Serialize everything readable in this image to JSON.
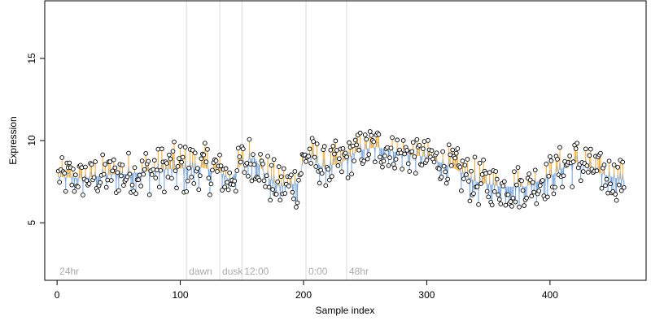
{
  "chart_data": {
    "type": "scatter",
    "title": "",
    "xlabel": "Sample index",
    "ylabel": "Expression",
    "xlim": [
      -10,
      478
    ],
    "ylim": [
      1.5,
      18.5
    ],
    "x_ticks": [
      0,
      100,
      200,
      300,
      400
    ],
    "y_ticks": [
      5,
      10,
      15
    ],
    "grid": false,
    "colors": {
      "above_trend": "#f5a623",
      "below_trend": "#6f9fd8",
      "point_fill": "#ffffff",
      "point_stroke": "#000000",
      "marker_line": "#d9d9d9",
      "annotation": "#aaaaaa"
    },
    "annotations": [
      {
        "x": 0,
        "label": "24hr"
      },
      {
        "x": 105,
        "label": "dawn"
      },
      {
        "x": 132,
        "label": "dusk"
      },
      {
        "x": 150,
        "label": "12:00"
      },
      {
        "x": 202,
        "label": "0:00"
      },
      {
        "x": 235,
        "label": "48hr"
      }
    ],
    "marker_lines": [
      105,
      132,
      150,
      202,
      235
    ],
    "trend": [
      [
        0,
        7.8
      ],
      [
        20,
        7.7
      ],
      [
        40,
        7.9
      ],
      [
        60,
        8.0
      ],
      [
        80,
        8.2
      ],
      [
        100,
        8.3
      ],
      [
        115,
        8.4
      ],
      [
        132,
        8.1
      ],
      [
        140,
        7.6
      ],
      [
        150,
        8.6
      ],
      [
        160,
        9.0
      ],
      [
        170,
        7.8
      ],
      [
        180,
        7.2
      ],
      [
        195,
        7.4
      ],
      [
        202,
        9.3
      ],
      [
        215,
        8.4
      ],
      [
        230,
        8.6
      ],
      [
        245,
        9.4
      ],
      [
        260,
        9.6
      ],
      [
        280,
        9.2
      ],
      [
        300,
        9.0
      ],
      [
        320,
        8.4
      ],
      [
        340,
        7.5
      ],
      [
        360,
        7.2
      ],
      [
        380,
        7.2
      ],
      [
        400,
        7.8
      ],
      [
        415,
        8.6
      ],
      [
        425,
        8.7
      ],
      [
        440,
        8.0
      ],
      [
        460,
        7.6
      ]
    ],
    "amplitude": [
      [
        0,
        0.8
      ],
      [
        60,
        0.9
      ],
      [
        100,
        1.2
      ],
      [
        130,
        1.0
      ],
      [
        160,
        1.0
      ],
      [
        200,
        1.0
      ],
      [
        240,
        0.9
      ],
      [
        300,
        0.8
      ],
      [
        340,
        1.0
      ],
      [
        400,
        0.9
      ],
      [
        420,
        1.0
      ],
      [
        460,
        0.9
      ]
    ],
    "n_points": 460
  }
}
